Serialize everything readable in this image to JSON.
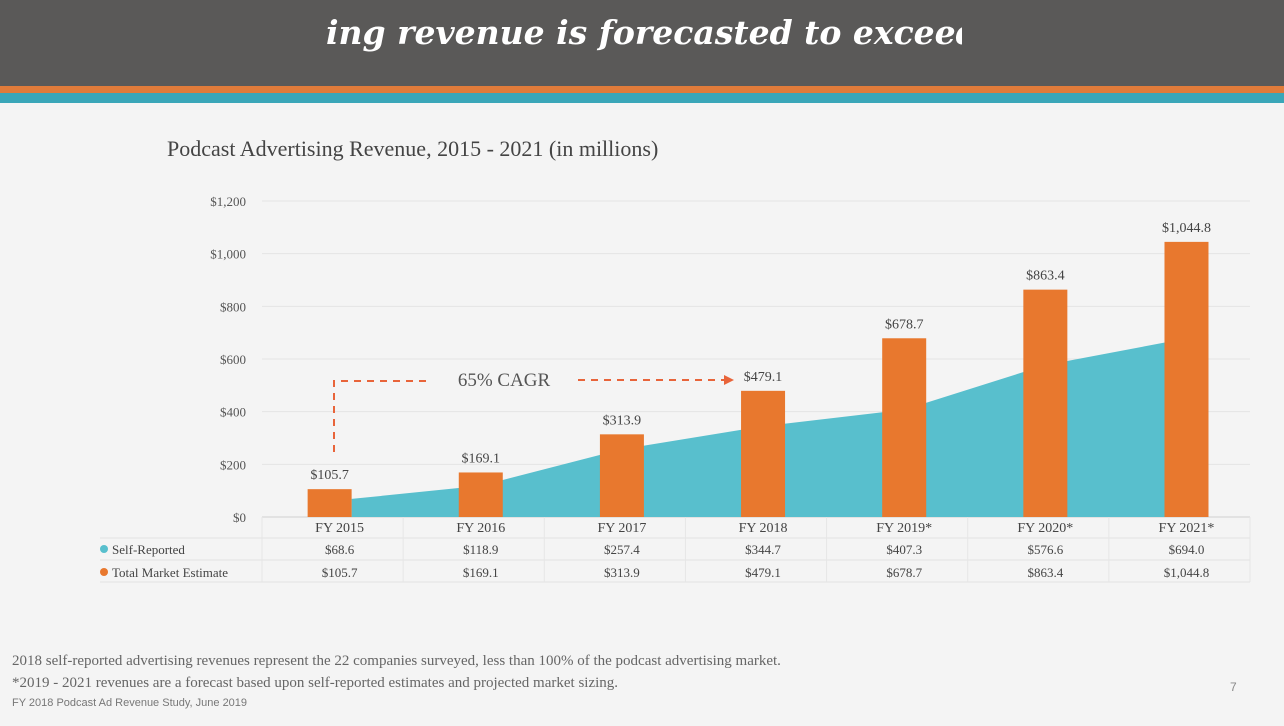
{
  "header": {
    "title": "ing revenue is forecasted to exceed"
  },
  "colors": {
    "header_bg": "#5a5958",
    "accent_orange": "#e07b3a",
    "accent_teal": "#3aa6b8",
    "self_reported": "#58bfcd",
    "total_market": "#e8782e"
  },
  "chart_data": {
    "type": "bar",
    "title": "Podcast Advertising Revenue, 2015 - 2021 (in millions)",
    "categories": [
      "FY 2015",
      "FY 2016",
      "FY 2017",
      "FY 2018",
      "FY 2019*",
      "FY 2020*",
      "FY 2021*"
    ],
    "series": [
      {
        "name": "Self-Reported",
        "chart_type": "area",
        "values": [
          68.6,
          118.9,
          257.4,
          344.7,
          407.3,
          576.6,
          694.0
        ],
        "labels": [
          "$68.6",
          "$118.9",
          "$257.4",
          "$344.7",
          "$407.3",
          "$576.6",
          "$694.0"
        ]
      },
      {
        "name": "Total Market Estimate",
        "chart_type": "bar",
        "values": [
          105.7,
          169.1,
          313.9,
          479.1,
          678.7,
          863.4,
          1044.8
        ],
        "labels": [
          "$105.7",
          "$169.1",
          "$313.9",
          "$479.1",
          "$678.7",
          "$863.4",
          "$1,044.8"
        ]
      }
    ],
    "ylim": [
      0,
      1200
    ],
    "yticks": [
      "$0",
      "$200",
      "$400",
      "$600",
      "$800",
      "$1,000",
      "$1,200"
    ],
    "annotation": "65% CAGR",
    "legend_position": "table-below"
  },
  "notes": {
    "line1": "2018 self-reported advertising revenues represent the 22 companies surveyed, less than 100% of the podcast advertising market.",
    "line2": "*2019 - 2021 revenues are a forecast based upon self-reported estimates and projected market sizing."
  },
  "source": "FY 2018 Podcast Ad Revenue Study, June 2019",
  "page_number": "7"
}
